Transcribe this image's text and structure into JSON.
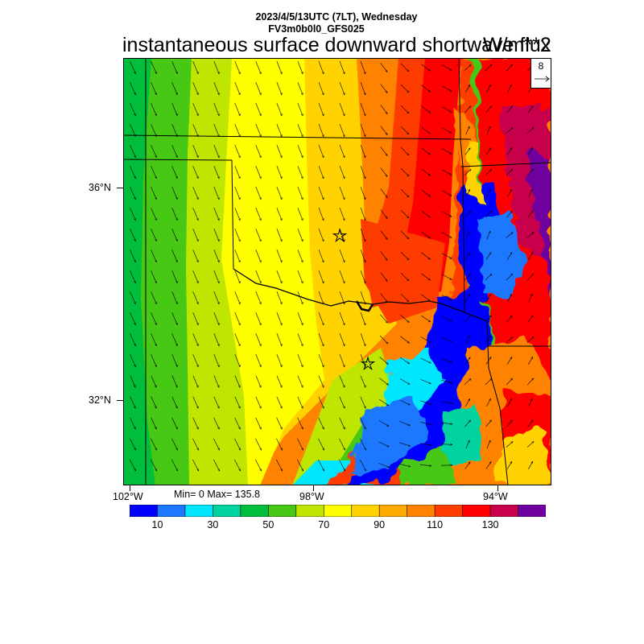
{
  "header": {
    "line1": "2023/4/5/13UTC (7LT), Wednesday",
    "line2": "FV3m0b0l0_GFS025",
    "title": "instantaneous surface downward shortwave flux",
    "units": "W/m**2"
  },
  "vector_reference": {
    "value": "8"
  },
  "axes": {
    "lat_labels": [
      "36°N",
      "32°N"
    ],
    "lon_labels": [
      "102°W",
      "98°W",
      "94°W"
    ]
  },
  "stats": {
    "text": "Min= 0 Max= 135.8"
  },
  "colorbar": {
    "colors": [
      "#0000ff",
      "#1e78ff",
      "#00e6ff",
      "#00d2a0",
      "#00be3c",
      "#46c814",
      "#bee600",
      "#ffff00",
      "#ffd200",
      "#ffaa00",
      "#ff8200",
      "#ff3c00",
      "#ff0000",
      "#c8004b",
      "#6e00a0"
    ],
    "tick_labels": [
      "10",
      "30",
      "50",
      "70",
      "90",
      "110",
      "130"
    ]
  },
  "markers": {
    "count": 2,
    "symbol": "star"
  }
}
